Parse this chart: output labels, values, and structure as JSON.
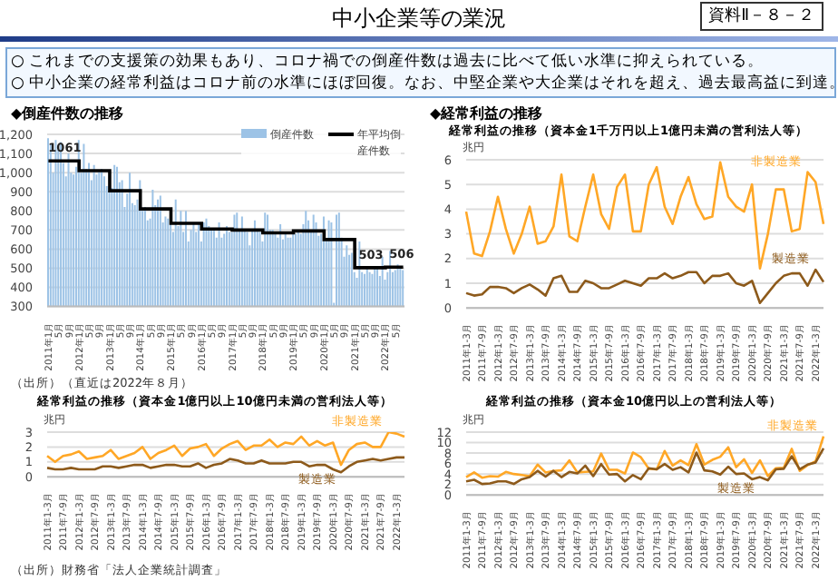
{
  "chart_data": [
    {
      "type": "other",
      "title": "中小企業等の業況",
      "annotations": [
        "資料Ⅱ－８－２",
        "○ これまでの支援策の効果もあり、コロナ禍での倒産件数は過去に比べて低い水準に抑えられている。",
        "○ 中小企業の経常利益はコロナ前の水準にほぼ回復。なお、中堅企業や大企業はそれを超え、過去最高益に到達。"
      ]
    },
    {
      "type": "bar",
      "title": "◆倒産件数の推移",
      "categories": [
        "2011年1月",
        null,
        null,
        null,
        "5月",
        null,
        null,
        null,
        "9月",
        null,
        null,
        null,
        "2012年1月",
        null,
        null,
        null,
        "5月",
        null,
        null,
        null,
        "9月",
        null,
        null,
        null,
        "2013年1月",
        null,
        null,
        null,
        "5月",
        null,
        null,
        null,
        "9月",
        null,
        null,
        null,
        "2014年1月",
        null,
        null,
        null,
        "5月",
        null,
        null,
        null,
        "9月",
        null,
        null,
        null,
        "2015年1月",
        null,
        null,
        null,
        "5月",
        null,
        null,
        null,
        "9月",
        null,
        null,
        null,
        "2016年1月",
        null,
        null,
        null,
        "5月",
        null,
        null,
        null,
        "9月",
        null,
        null,
        null,
        "2017年1月",
        null,
        null,
        null,
        "5月",
        null,
        null,
        null,
        "9月",
        null,
        null,
        null,
        "2018年1月",
        null,
        null,
        null,
        "5月",
        null,
        null,
        null,
        "9月",
        null,
        null,
        null,
        "2019年1月",
        null,
        null,
        null,
        "5月",
        null,
        null,
        null,
        "9月",
        null,
        null,
        null,
        "2020年1月",
        null,
        null,
        null,
        "5月",
        null,
        null,
        null,
        "9月",
        null,
        null,
        null,
        "2021年1月",
        null,
        null,
        null,
        "5月",
        null,
        null,
        null,
        "9月",
        null,
        null,
        null,
        "2022年1月",
        null,
        null,
        null,
        "5月",
        null,
        null,
        null
      ],
      "series": [
        {
          "name": "倒産件数",
          "color": "#9dc3e6",
          "values": [
            1180,
            1150,
            1000,
            1170,
            1120,
            1160,
            1050,
            980,
            1100,
            1000,
            990,
            1030,
            1170,
            1000,
            1150,
            1020,
            1050,
            960,
            1040,
            990,
            1010,
            1020,
            980,
            930,
            930,
            920,
            1040,
            1030,
            950,
            960,
            820,
            890,
            1000,
            840,
            830,
            860,
            960,
            800,
            820,
            750,
            760,
            910,
            830,
            860,
            880,
            740,
            770,
            760,
            740,
            690,
            860,
            720,
            800,
            690,
            800,
            640,
            700,
            740,
            690,
            740,
            640,
            740,
            760,
            720,
            700,
            700,
            660,
            740,
            660,
            680,
            720,
            690,
            690,
            780,
            790,
            700,
            770,
            700,
            690,
            620,
            700,
            750,
            700,
            690,
            640,
            790,
            780,
            700,
            700,
            690,
            660,
            730,
            650,
            690,
            660,
            660,
            690,
            680,
            690,
            680,
            730,
            800,
            750,
            700,
            780,
            740,
            670,
            680,
            770,
            650,
            750,
            740,
            320,
            780,
            790,
            660,
            560,
            620,
            570,
            580,
            480,
            450,
            640,
            480,
            470,
            510,
            480,
            470,
            510,
            500,
            460,
            560,
            440,
            480,
            590,
            480,
            490,
            520,
            510,
            490
          ]
        },
        {
          "name": "年平均倒産件数",
          "type": "step",
          "color": "#000000",
          "values": [
            1061,
            1061,
            1061,
            1061,
            1061,
            1061,
            1061,
            1061,
            1061,
            1061,
            1061,
            1061,
            1010,
            1010,
            1010,
            1010,
            1010,
            1010,
            1010,
            1010,
            1010,
            1010,
            1010,
            1010,
            905,
            905,
            905,
            905,
            905,
            905,
            905,
            905,
            905,
            905,
            905,
            905,
            810,
            810,
            810,
            810,
            810,
            810,
            810,
            810,
            810,
            810,
            810,
            810,
            735,
            735,
            735,
            735,
            735,
            735,
            735,
            735,
            735,
            735,
            735,
            735,
            705,
            705,
            705,
            705,
            705,
            705,
            705,
            705,
            705,
            705,
            705,
            705,
            700,
            700,
            700,
            700,
            700,
            700,
            700,
            700,
            700,
            700,
            700,
            700,
            685,
            685,
            685,
            685,
            685,
            685,
            685,
            685,
            685,
            685,
            685,
            685,
            695,
            695,
            695,
            695,
            695,
            695,
            695,
            695,
            695,
            695,
            695,
            695,
            650,
            650,
            650,
            650,
            650,
            650,
            650,
            650,
            650,
            650,
            650,
            650,
            503,
            503,
            503,
            503,
            503,
            503,
            503,
            503,
            503,
            503,
            503,
            503,
            506,
            506,
            506,
            506,
            506,
            506,
            506,
            506
          ]
        }
      ],
      "ylim": [
        300,
        1200
      ],
      "yticks": [
        300,
        400,
        500,
        600,
        700,
        800,
        900,
        {
          "value": 1000,
          "label": "1,000"
        },
        {
          "value": 1100,
          "label": "1,100"
        },
        {
          "value": 1200,
          "label": "1,200"
        }
      ],
      "grid": "y",
      "legend": "top right",
      "annotations": [
        {
          "text": "1061",
          "x": "2011年1月",
          "y": 1061
        },
        {
          "text": "503",
          "x": "2021年1月",
          "y": 503
        },
        {
          "text": "506",
          "x": "2022年1月",
          "y": 506
        },
        "（出所）（直近は2022年８月）"
      ]
    },
    {
      "type": "line",
      "title": "◆経常利益の推移",
      "subtitle": "経常利益の推移（資本金1千万円以上1億円未満の営利法人等）",
      "ylabel": "兆円",
      "categories": [
        "2011年1-3月",
        null,
        "2011年7-9月",
        null,
        "2012年1-3月",
        null,
        "2012年7-9月",
        null,
        "2013年1-3月",
        null,
        "2013年7-9月",
        null,
        "2014年1-3月",
        null,
        "2014年7-9月",
        null,
        "2015年1-3月",
        null,
        "2015年7-9月",
        null,
        "2016年1-3月",
        null,
        "2016年7-9月",
        null,
        "2017年1-3月",
        null,
        "2017年7-9月",
        null,
        "2018年1-3月",
        null,
        "2018年7-9月",
        null,
        "2019年1-3月",
        null,
        "2019年7-9月",
        null,
        "2020年1-3月",
        null,
        "2020年7-9月",
        null,
        "2021年1-3月",
        null,
        "2021年7-9月",
        null,
        "2022年1-3月",
        null
      ],
      "series": [
        {
          "name": "非製造業",
          "color": "#ffa726",
          "values": [
            3.9,
            2.2,
            2.1,
            3.1,
            4.5,
            3.2,
            2.2,
            3.0,
            4.1,
            2.6,
            2.7,
            3.3,
            5.4,
            2.9,
            2.7,
            4.1,
            5.4,
            3.8,
            3.2,
            4.9,
            5.4,
            3.1,
            3.1,
            5.0,
            5.7,
            4.1,
            3.4,
            4.5,
            5.3,
            4.2,
            3.6,
            3.7,
            5.9,
            4.5,
            4.1,
            3.9,
            5.0,
            1.6,
            3.0,
            4.8,
            4.8,
            3.1,
            3.2,
            5.5,
            5.1,
            3.4
          ]
        },
        {
          "name": "製造業",
          "color": "#8d5a1b",
          "values": [
            0.6,
            0.5,
            0.55,
            0.85,
            0.85,
            0.8,
            0.6,
            0.8,
            0.95,
            0.75,
            0.5,
            1.2,
            1.3,
            0.65,
            0.65,
            1.1,
            1.0,
            0.8,
            0.8,
            0.95,
            1.1,
            1.0,
            0.9,
            1.2,
            1.2,
            1.4,
            1.2,
            1.3,
            1.45,
            1.45,
            1.0,
            1.3,
            1.3,
            1.4,
            1.0,
            0.9,
            1.1,
            0.2,
            0.6,
            1.0,
            1.3,
            1.4,
            1.4,
            0.9,
            1.55,
            1.05
          ]
        }
      ],
      "ylim": [
        0,
        6
      ],
      "yticks": [
        0,
        1,
        2,
        3,
        4,
        5,
        6
      ],
      "grid": "y"
    },
    {
      "type": "line",
      "title": "経常利益の推移（資本金1億円以上10億円未満の営利法人等）",
      "ylabel": "兆円",
      "categories": [
        "2011年1-3月",
        null,
        "2011年7-9月",
        null,
        "2012年1-3月",
        null,
        "2012年7-9月",
        null,
        "2013年1-3月",
        null,
        "2013年7-9月",
        null,
        "2014年1-3月",
        null,
        "2014年7-9月",
        null,
        "2015年1-3月",
        null,
        "2015年7-9月",
        null,
        "2016年1-3月",
        null,
        "2016年7-9月",
        null,
        "2017年1-3月",
        null,
        "2017年7-9月",
        null,
        "2018年1-3月",
        null,
        "2018年7-9月",
        null,
        "2019年1-3月",
        null,
        "2019年7-9月",
        null,
        "2020年1-3月",
        null,
        "2020年7-9月",
        null,
        "2021年1-3月",
        null,
        "2021年7-9月",
        null,
        "2022年1-3月",
        null
      ],
      "series": [
        {
          "name": "非製造業",
          "color": "#ffa726",
          "values": [
            1.4,
            1.0,
            1.4,
            1.5,
            1.7,
            1.2,
            1.3,
            1.4,
            1.8,
            1.2,
            1.4,
            1.6,
            2.0,
            1.2,
            1.6,
            1.8,
            2.1,
            1.4,
            1.9,
            2.0,
            2.2,
            1.4,
            1.9,
            2.2,
            2.4,
            1.8,
            2.1,
            2.1,
            2.5,
            2.0,
            2.3,
            2.2,
            2.7,
            2.1,
            2.4,
            2.1,
            2.3,
            0.8,
            1.8,
            2.2,
            2.3,
            2.0,
            2.0,
            3.0,
            2.9,
            2.7
          ]
        },
        {
          "name": "製造業",
          "color": "#8d5a1b",
          "values": [
            0.6,
            0.5,
            0.5,
            0.6,
            0.5,
            0.5,
            0.5,
            0.7,
            0.7,
            0.6,
            0.7,
            0.8,
            0.8,
            0.6,
            0.7,
            0.8,
            0.8,
            0.7,
            0.7,
            0.9,
            0.6,
            0.8,
            0.9,
            1.2,
            1.1,
            0.9,
            0.9,
            1.1,
            0.9,
            0.9,
            0.9,
            1.0,
            1.0,
            0.7,
            0.8,
            0.8,
            0.5,
            0.3,
            0.7,
            1.0,
            1.1,
            1.2,
            1.1,
            1.2,
            1.3,
            1.3
          ]
        }
      ],
      "ylim": [
        0,
        3
      ],
      "yticks": [
        0,
        1,
        2,
        3
      ],
      "grid": "y",
      "annotations": [
        "（出所）財務省「法人企業統計調査」"
      ]
    },
    {
      "type": "line",
      "title": "経常利益の推移（資本金10億円以上の営利法人等）",
      "ylabel": "兆円",
      "categories": [
        "2011年1-3月",
        null,
        "2011年7-9月",
        null,
        "2012年1-3月",
        null,
        "2012年7-9月",
        null,
        "2013年1-3月",
        null,
        "2013年7-9月",
        null,
        "2014年1-3月",
        null,
        "2014年7-9月",
        null,
        "2015年1-3月",
        null,
        "2015年7-9月",
        null,
        "2016年1-3月",
        null,
        "2016年7-9月",
        null,
        "2017年1-3月",
        null,
        "2017年7-9月",
        null,
        "2018年1-3月",
        null,
        "2018年7-9月",
        null,
        "2019年1-3月",
        null,
        "2019年7-9月",
        null,
        "2020年1-3月",
        null,
        "2020年7-9月",
        null,
        "2021年1-3月",
        null,
        "2021年7-9月",
        null,
        "2022年1-3月",
        null
      ],
      "series": [
        {
          "name": "非製造業",
          "color": "#ffa726",
          "values": [
            3.4,
            4.3,
            3.3,
            3.6,
            3.5,
            4.4,
            4.0,
            3.8,
            3.6,
            5.8,
            4.3,
            4.6,
            4.7,
            6.6,
            4.3,
            4.4,
            4.5,
            7.9,
            4.8,
            4.8,
            4.1,
            8.1,
            7.2,
            5.0,
            4.9,
            8.4,
            5.6,
            6.6,
            5.7,
            9.7,
            5.8,
            6.7,
            7.3,
            9.1,
            5.3,
            6.8,
            4.2,
            6.6,
            3.6,
            5.1,
            5.2,
            8.8,
            4.6,
            5.7,
            6.4,
            11.2
          ]
        },
        {
          "name": "製造業",
          "color": "#8d5a1b",
          "values": [
            2.6,
            2.9,
            2.1,
            2.2,
            2.6,
            2.6,
            2.1,
            3.0,
            3.4,
            4.6,
            3.5,
            4.6,
            3.4,
            4.4,
            4.1,
            5.6,
            3.6,
            5.9,
            3.9,
            4.0,
            2.6,
            3.8,
            3.0,
            5.1,
            4.9,
            5.9,
            4.8,
            5.3,
            4.3,
            8.1,
            4.7,
            4.5,
            3.9,
            5.4,
            4.0,
            4.1,
            3.0,
            3.4,
            2.8,
            4.9,
            5.0,
            7.4,
            4.9,
            5.8,
            6.2,
            8.9
          ]
        }
      ],
      "ylim": [
        0,
        12
      ],
      "yticks": [
        0,
        2,
        4,
        6,
        8,
        10,
        12
      ],
      "grid": "y"
    }
  ]
}
